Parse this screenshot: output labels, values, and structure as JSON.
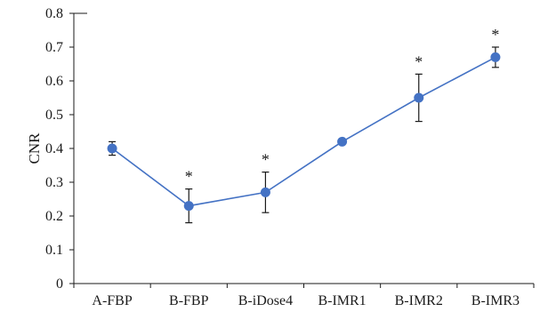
{
  "chart_data": {
    "type": "line",
    "title": "",
    "xlabel": "",
    "ylabel": "CNR",
    "ylim": [
      0,
      0.8
    ],
    "yticks": [
      0,
      0.1,
      0.2,
      0.3,
      0.4,
      0.5,
      0.6,
      0.7,
      0.8
    ],
    "ytick_labels": [
      "0",
      "0.1",
      "0.2",
      "0.3",
      "0.4",
      "0.5",
      "0.6",
      "0.7",
      "0.8"
    ],
    "categories": [
      "A-FBP",
      "B-FBP",
      "B-iDose4",
      "B-IMR1",
      "B-IMR2",
      "B-IMR3"
    ],
    "series": [
      {
        "values": [
          0.4,
          0.23,
          0.27,
          0.42,
          0.55,
          0.67
        ],
        "error": [
          0.02,
          0.05,
          0.06,
          0.005,
          0.07,
          0.03
        ],
        "color": "#4472C4"
      }
    ],
    "annotations": [
      "",
      "*",
      "*",
      "",
      "*",
      "*"
    ],
    "grid": false,
    "legend": "none"
  }
}
